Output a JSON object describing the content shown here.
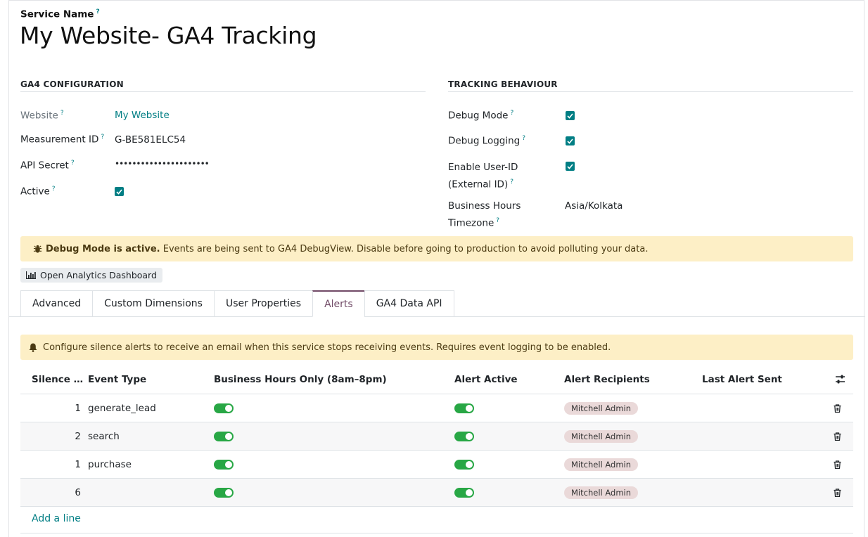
{
  "header": {
    "service_name_label": "Service Name",
    "title": "My Website- GA4 Tracking"
  },
  "ga4_config": {
    "heading": "GA4 CONFIGURATION",
    "website_label": "Website",
    "website_value": "My Website",
    "measurement_label": "Measurement ID",
    "measurement_value": "G-BE581ELC54",
    "api_secret_label": "API Secret",
    "api_secret_value": "••••••••••••••••••••••",
    "active_label": "Active",
    "active_checked": true
  },
  "tracking": {
    "heading": "TRACKING BEHAVIOUR",
    "debug_mode_label": "Debug Mode",
    "debug_mode_checked": true,
    "debug_logging_label": "Debug Logging",
    "debug_logging_checked": true,
    "user_id_label_1": "Enable User-ID",
    "user_id_label_2": "(External ID)",
    "user_id_checked": true,
    "tz_label_1": "Business Hours",
    "tz_label_2": "Timezone",
    "tz_value": "Asia/Kolkata"
  },
  "debug_banner": {
    "bold": "Debug Mode is active.",
    "text": " Events are being sent to GA4 DebugView. Disable before going to production to avoid polluting your data."
  },
  "dashboard_button": "Open Analytics Dashboard",
  "tabs": [
    {
      "label": "Advanced",
      "active": false
    },
    {
      "label": "Custom Dimensions",
      "active": false
    },
    {
      "label": "User Properties",
      "active": false
    },
    {
      "label": "Alerts",
      "active": true
    },
    {
      "label": "GA4 Data API",
      "active": false
    }
  ],
  "alerts_banner": "Configure silence alerts to receive an email when this service stops receiving events. Requires event logging to be enabled.",
  "table": {
    "columns": {
      "silence": "Silence …",
      "event_type": "Event Type",
      "business_hours": "Business Hours Only (8am–8pm)",
      "alert_active": "Alert Active",
      "recipients": "Alert Recipients",
      "last_sent": "Last Alert Sent"
    },
    "rows": [
      {
        "silence": "1",
        "event_type": "generate_lead",
        "business_hours": true,
        "alert_active": true,
        "recipient": "Mitchell Admin",
        "last_sent": ""
      },
      {
        "silence": "2",
        "event_type": "search",
        "business_hours": true,
        "alert_active": true,
        "recipient": "Mitchell Admin",
        "last_sent": ""
      },
      {
        "silence": "1",
        "event_type": "purchase",
        "business_hours": true,
        "alert_active": true,
        "recipient": "Mitchell Admin",
        "last_sent": ""
      },
      {
        "silence": "6",
        "event_type": "",
        "business_hours": true,
        "alert_active": true,
        "recipient": "Mitchell Admin",
        "last_sent": ""
      }
    ],
    "add_line": "Add a line"
  },
  "colors": {
    "accent": "#017e84",
    "toggle_on": "#28a745",
    "banner_bg": "#fdefc6",
    "tab_active": "#714b67"
  }
}
